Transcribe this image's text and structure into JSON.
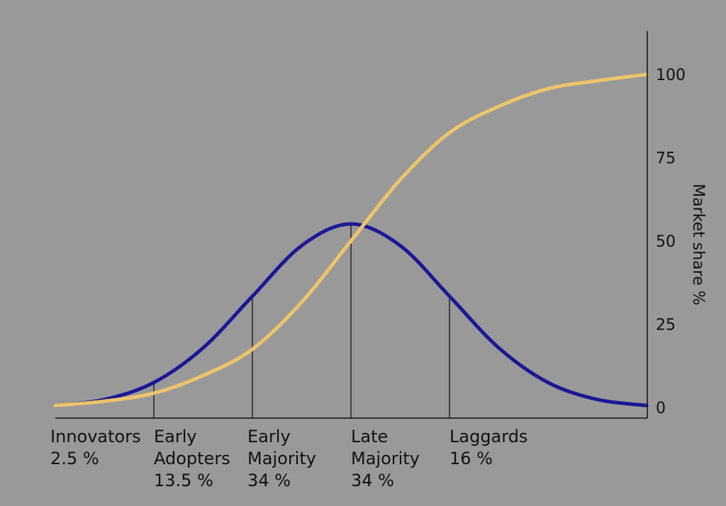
{
  "chart_data": {
    "type": "line",
    "title": "",
    "xlabel": "",
    "ylabel": "Market share %",
    "y_ticks": [
      "0",
      "25",
      "50",
      "75",
      "100"
    ],
    "ylim": [
      0,
      110
    ],
    "y_axis_side": "right",
    "grid": false,
    "legend": "none",
    "x_domain": [
      -3,
      3
    ],
    "series": [
      {
        "kind": "adoption-bell",
        "color": "#1b1896",
        "x": [
          -3,
          -2.5,
          -2,
          -1.5,
          -1,
          -0.5,
          0,
          0.5,
          1,
          1.5,
          2,
          2.5,
          3
        ],
        "y": [
          0.6,
          2.4,
          7.5,
          17.9,
          33.4,
          48.6,
          55.1,
          48.6,
          33.4,
          17.9,
          7.5,
          2.4,
          0.6
        ]
      },
      {
        "kind": "cumulative-adoption",
        "color": "#eec46b",
        "x": [
          -3,
          -2.5,
          -2,
          -1.5,
          -1,
          -0.5,
          0,
          0.5,
          1,
          1.5,
          2,
          2.5,
          3
        ],
        "y": [
          0.6,
          1.9,
          4.3,
          9.6,
          17.5,
          31.6,
          50,
          68.4,
          82.5,
          90.4,
          95.7,
          98.1,
          100
        ]
      }
    ],
    "dividers": [
      {
        "x": -2,
        "y": 7.5
      },
      {
        "x": -1,
        "y": 33.4
      },
      {
        "x": 0,
        "y": 55.1
      },
      {
        "x": 1,
        "y": 33.4
      }
    ],
    "segments": [
      {
        "lines": [
          "Innovators",
          "2.5 %"
        ],
        "start": -3.05
      },
      {
        "lines": [
          "Early",
          "Adopters",
          "13.5 %"
        ],
        "start": -2.0
      },
      {
        "lines": [
          "Early",
          "Majority",
          "34 %"
        ],
        "start": -1.05
      },
      {
        "lines": [
          "Late",
          "Majority",
          "34 %"
        ],
        "start": 0.0
      },
      {
        "lines": [
          "Laggards",
          "16 %"
        ],
        "start": 1.0
      }
    ],
    "colors": {
      "background": "#999999",
      "axis": "#111111"
    }
  }
}
